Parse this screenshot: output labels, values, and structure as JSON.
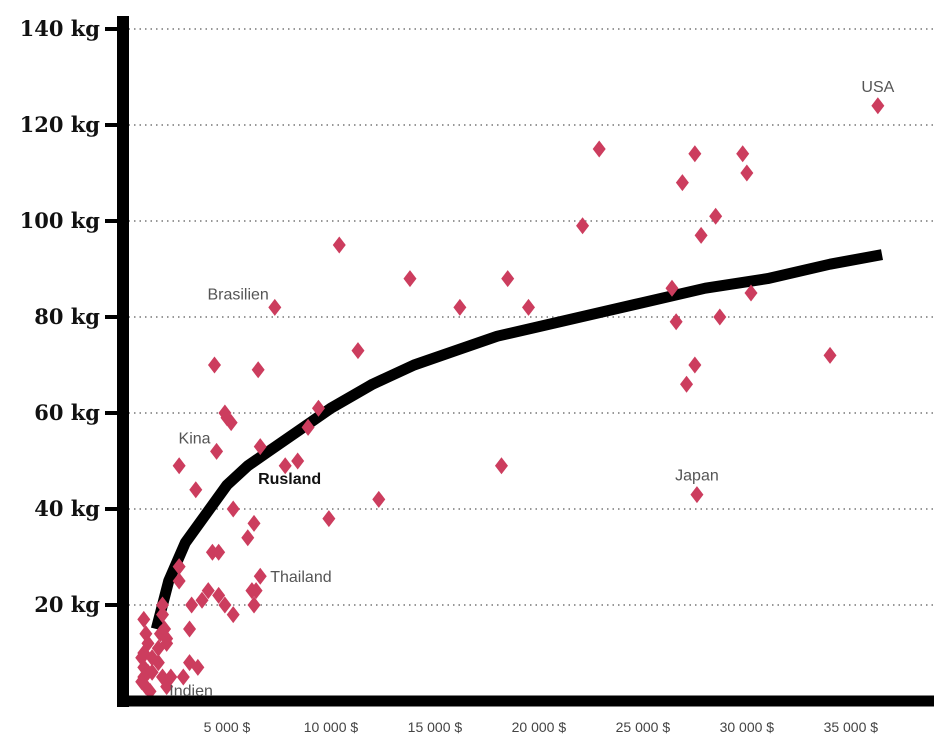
{
  "chart_data": {
    "type": "scatter",
    "ylim": [
      0,
      140
    ],
    "xlim": [
      0,
      39000
    ],
    "yticks": [
      {
        "value": 20,
        "label": "20 kg"
      },
      {
        "value": 40,
        "label": "40 kg"
      },
      {
        "value": 60,
        "label": "60 kg"
      },
      {
        "value": 80,
        "label": "80 kg"
      },
      {
        "value": 100,
        "label": "100 kg"
      },
      {
        "value": 120,
        "label": "120 kg"
      },
      {
        "value": 140,
        "label": "140 kg"
      }
    ],
    "xticks": [
      {
        "value": 5000,
        "label": "5 000 $"
      },
      {
        "value": 10000,
        "label": "10 000 $"
      },
      {
        "value": 15000,
        "label": "15 000 $"
      },
      {
        "value": 20000,
        "label": "20 000 $"
      },
      {
        "value": 25000,
        "label": "25 000 $"
      },
      {
        "value": 30000,
        "label": "30 000 $"
      },
      {
        "value": 35000,
        "label": "35 000 $"
      }
    ],
    "grid": "horizontal-dotted",
    "marker_color": "#cc3d5e",
    "trend_color": "#000000",
    "points": [
      [
        1000,
        17
      ],
      [
        1100,
        14
      ],
      [
        1200,
        12
      ],
      [
        1000,
        10
      ],
      [
        900,
        9
      ],
      [
        1000,
        7
      ],
      [
        1200,
        6
      ],
      [
        1000,
        5
      ],
      [
        900,
        4
      ],
      [
        1100,
        3
      ],
      [
        1300,
        2
      ],
      [
        1400,
        9
      ],
      [
        1400,
        6
      ],
      [
        1700,
        11
      ],
      [
        1800,
        14
      ],
      [
        1900,
        20
      ],
      [
        1900,
        18
      ],
      [
        2000,
        15
      ],
      [
        2100,
        12
      ],
      [
        1700,
        8
      ],
      [
        1900,
        5
      ],
      [
        2100,
        3
      ],
      [
        2300,
        5
      ],
      [
        2100,
        13
      ],
      [
        2700,
        49
      ],
      [
        2700,
        28
      ],
      [
        2700,
        25
      ],
      [
        2900,
        5
      ],
      [
        3200,
        8
      ],
      [
        3200,
        15
      ],
      [
        3300,
        20
      ],
      [
        3500,
        44
      ],
      [
        3600,
        7
      ],
      [
        3800,
        21
      ],
      [
        4100,
        23
      ],
      [
        4300,
        31
      ],
      [
        4500,
        52
      ],
      [
        4400,
        70
      ],
      [
        4600,
        22
      ],
      [
        4600,
        31
      ],
      [
        4900,
        20
      ],
      [
        4900,
        60
      ],
      [
        5000,
        59
      ],
      [
        5200,
        58
      ],
      [
        5300,
        18
      ],
      [
        5300,
        40
      ],
      [
        6000,
        34
      ],
      [
        6200,
        23
      ],
      [
        6300,
        37
      ],
      [
        6300,
        20
      ],
      [
        6400,
        23
      ],
      [
        6500,
        69
      ],
      [
        6600,
        26
      ],
      [
        6600,
        53
      ],
      [
        7300,
        82
      ],
      [
        7800,
        49
      ],
      [
        8400,
        50
      ],
      [
        8900,
        57
      ],
      [
        9400,
        61
      ],
      [
        9900,
        38
      ],
      [
        10400,
        95
      ],
      [
        11300,
        73
      ],
      [
        12300,
        42
      ],
      [
        13800,
        88
      ],
      [
        16200,
        82
      ],
      [
        18200,
        49
      ],
      [
        18500,
        88
      ],
      [
        19500,
        82
      ],
      [
        22100,
        99
      ],
      [
        22900,
        115
      ],
      [
        26400,
        86
      ],
      [
        26600,
        79
      ],
      [
        26900,
        108
      ],
      [
        27100,
        66
      ],
      [
        27500,
        70
      ],
      [
        27500,
        114
      ],
      [
        27600,
        43
      ],
      [
        27800,
        97
      ],
      [
        28500,
        101
      ],
      [
        28700,
        80
      ],
      [
        29800,
        114
      ],
      [
        30000,
        110
      ],
      [
        30200,
        85
      ],
      [
        34000,
        72
      ],
      [
        36300,
        124
      ]
    ],
    "trend": [
      [
        1600,
        15
      ],
      [
        2200,
        25
      ],
      [
        3000,
        33
      ],
      [
        4000,
        39
      ],
      [
        5000,
        45
      ],
      [
        6000,
        49
      ],
      [
        7000,
        52
      ],
      [
        8000,
        55
      ],
      [
        9000,
        58
      ],
      [
        10000,
        61
      ],
      [
        12000,
        66
      ],
      [
        14000,
        70
      ],
      [
        16000,
        73
      ],
      [
        18000,
        76
      ],
      [
        20000,
        78
      ],
      [
        22000,
        80
      ],
      [
        25000,
        83
      ],
      [
        28000,
        86
      ],
      [
        31000,
        88
      ],
      [
        34000,
        91
      ],
      [
        36500,
        93
      ]
    ],
    "annotations": [
      {
        "label": "USA",
        "x": 36300,
        "y": 124,
        "style": "normal",
        "pos": "above"
      },
      {
        "label": "Brasilien",
        "x": 7300,
        "y": 82,
        "style": "normal",
        "pos": "left-above"
      },
      {
        "label": "Kina",
        "x": 4500,
        "y": 52,
        "style": "normal",
        "pos": "left-above"
      },
      {
        "label": "Rusland",
        "x": 7800,
        "y": 49,
        "style": "bold",
        "pos": "below-left"
      },
      {
        "label": "Japan",
        "x": 27600,
        "y": 43,
        "style": "normal",
        "pos": "above"
      },
      {
        "label": "Thailand",
        "x": 6600,
        "y": 26,
        "style": "normal",
        "pos": "right"
      },
      {
        "label": "Indien",
        "x": 2900,
        "y": 5,
        "style": "normal",
        "pos": "below-right"
      }
    ]
  }
}
